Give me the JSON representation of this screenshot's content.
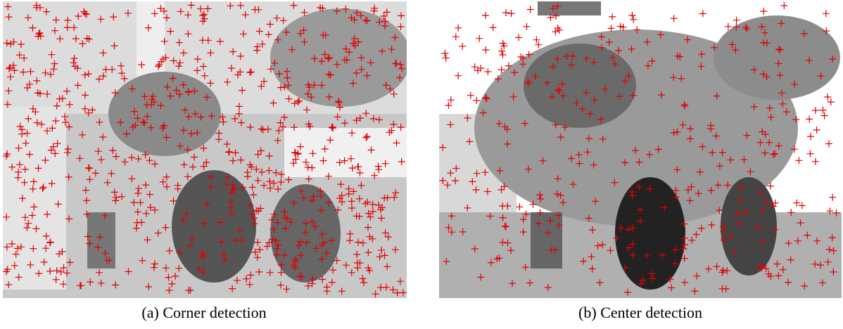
{
  "figure": {
    "panels": [
      {
        "label": "(a)",
        "caption": "Corner detection"
      },
      {
        "label": "(b)",
        "caption": "Center detection"
      }
    ]
  }
}
